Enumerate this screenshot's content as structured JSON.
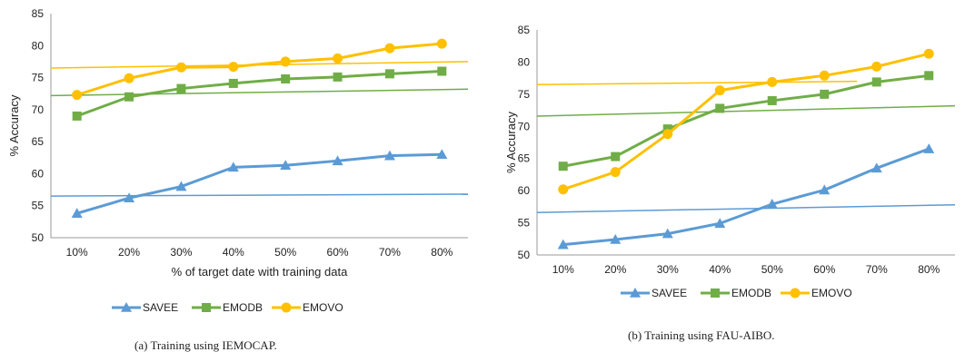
{
  "charts": {
    "a": {
      "caption": "(a) Training using IEMOCAP.",
      "chart_data": {
        "type": "line",
        "categories": [
          "10%",
          "20%",
          "30%",
          "40%",
          "50%",
          "60%",
          "70%",
          "80%"
        ],
        "xlabel": "% of target date with training data",
        "ylabel": "% Accuracy",
        "ylim": [
          50,
          85
        ],
        "yticks": [
          "50",
          "55",
          "60",
          "65",
          "70",
          "75",
          "80",
          "85"
        ],
        "grid": false,
        "legend": "bottom",
        "series": [
          {
            "name": "SAVEE",
            "marker": "triangle",
            "color": "#5b9bd5",
            "values": [
              53.8,
              56.2,
              58.0,
              61.0,
              61.3,
              62.0,
              62.8,
              63.0
            ],
            "trend": [
              56.5,
              56.8
            ]
          },
          {
            "name": "EMODB",
            "marker": "square",
            "color": "#70ad47",
            "values": [
              69.0,
              72.0,
              73.3,
              74.1,
              74.8,
              75.1,
              75.6,
              76.0
            ],
            "trend": [
              72.2,
              73.2
            ]
          },
          {
            "name": "EMOVO",
            "marker": "circle",
            "color": "#ffc000",
            "values": [
              72.3,
              74.9,
              76.6,
              76.7,
              77.5,
              78.0,
              79.6,
              80.3
            ],
            "trend": [
              76.5,
              77.5
            ]
          }
        ]
      }
    },
    "b": {
      "caption": "(b) Training using FAU-AIBO.",
      "chart_data": {
        "type": "line",
        "categories": [
          "10%",
          "20%",
          "30%",
          "40%",
          "50%",
          "60%",
          "70%",
          "80%"
        ],
        "xlabel": "",
        "ylabel": "% Accuracy",
        "ylim": [
          50,
          85
        ],
        "yticks": [
          "50",
          "55",
          "60",
          "65",
          "70",
          "75",
          "80",
          "85"
        ],
        "grid": false,
        "legend": "bottom",
        "series": [
          {
            "name": "SAVEE",
            "marker": "triangle",
            "color": "#5b9bd5",
            "values": [
              51.6,
              52.4,
              53.3,
              54.9,
              57.9,
              60.1,
              63.5,
              66.5
            ],
            "trend": [
              56.6,
              57.8
            ]
          },
          {
            "name": "EMODB",
            "marker": "square",
            "color": "#70ad47",
            "values": [
              63.8,
              65.3,
              69.6,
              72.8,
              74.0,
              75.0,
              76.9,
              77.9
            ],
            "trend": [
              71.6,
              73.2
            ]
          },
          {
            "name": "EMOVO",
            "marker": "circle",
            "color": "#ffc000",
            "values": [
              60.2,
              62.9,
              68.8,
              75.6,
              76.9,
              77.9,
              79.3,
              81.3
            ],
            "trend": [
              76.5,
              77.0
            ]
          }
        ]
      }
    }
  }
}
